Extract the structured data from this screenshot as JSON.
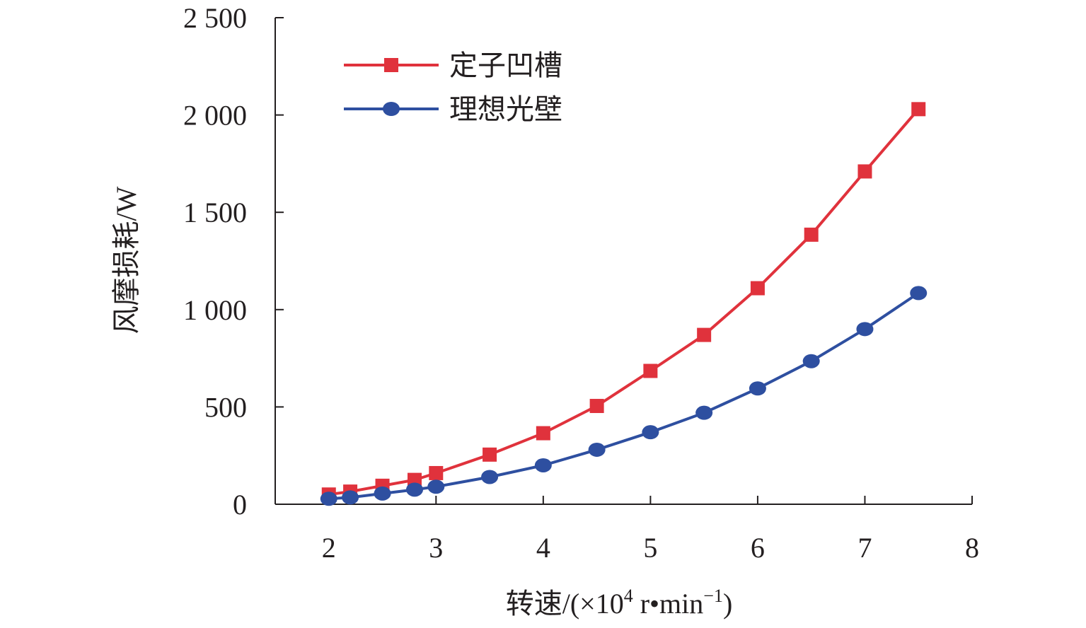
{
  "chart_data": {
    "type": "line",
    "xlabel": "转速/(×10",
    "xlabel_sup": "4",
    "xlabel_unit": " r•min",
    "xlabel_unit_sup": "−1",
    "xlabel_close": ")",
    "ylabel": "风摩损耗/W",
    "xlim": [
      1.5,
      8
    ],
    "ylim": [
      0,
      2500
    ],
    "xticks": [
      {
        "value": 2,
        "label": "2"
      },
      {
        "value": 3,
        "label": "3"
      },
      {
        "value": 4,
        "label": "4"
      },
      {
        "value": 5,
        "label": "5"
      },
      {
        "value": 6,
        "label": "6"
      },
      {
        "value": 7,
        "label": "7"
      },
      {
        "value": 8,
        "label": "8"
      }
    ],
    "yticks": [
      {
        "value": 0,
        "label": "0"
      },
      {
        "value": 500,
        "label": "500"
      },
      {
        "value": 1000,
        "label": "1 000"
      },
      {
        "value": 1500,
        "label": "1 500"
      },
      {
        "value": 2000,
        "label": "2 000"
      },
      {
        "value": 2500,
        "label": "2 500"
      }
    ],
    "grid": false,
    "legend_position": "top-left",
    "series": [
      {
        "name": "定子凹槽",
        "color": "#e0323c",
        "marker": "square",
        "x": [
          2,
          2.2,
          2.5,
          2.8,
          3,
          3.5,
          4,
          4.5,
          5,
          5.5,
          6,
          6.5,
          7,
          7.5
        ],
        "y": [
          50,
          65,
          95,
          125,
          160,
          255,
          365,
          505,
          685,
          870,
          1110,
          1385,
          1710,
          2030
        ]
      },
      {
        "name": "理想光壁",
        "color": "#2e4fa0",
        "marker": "circle",
        "x": [
          2,
          2.2,
          2.5,
          2.8,
          3,
          3.5,
          4,
          4.5,
          5,
          5.5,
          6,
          6.5,
          7,
          7.5
        ],
        "y": [
          28,
          35,
          55,
          75,
          90,
          140,
          200,
          280,
          370,
          470,
          595,
          735,
          900,
          1085
        ]
      }
    ]
  }
}
